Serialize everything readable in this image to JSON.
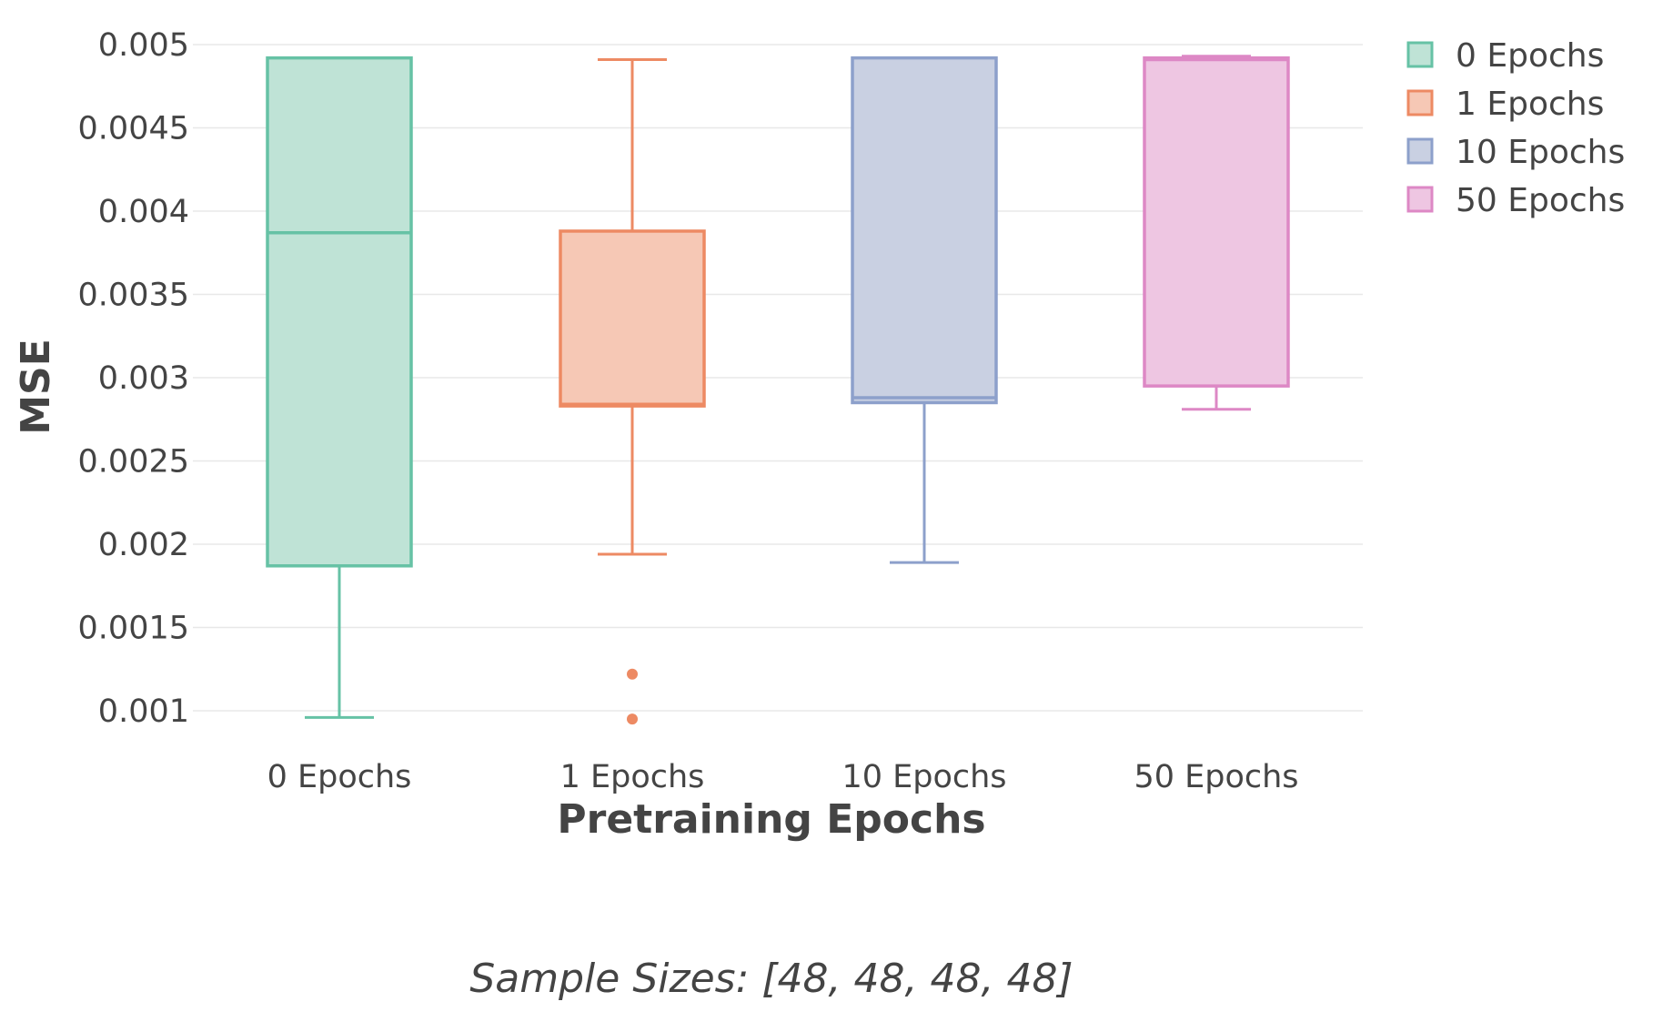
{
  "chart_data": {
    "type": "box",
    "xlabel": "Pretraining Epochs",
    "ylabel": "MSE",
    "ylim": [
      0.00072,
      0.00515
    ],
    "yticks": [
      0.001,
      0.0015,
      0.002,
      0.0025,
      0.003,
      0.0035,
      0.004,
      0.0045,
      0.005
    ],
    "ytick_labels": [
      "0.001",
      "0.0015",
      "0.002",
      "0.0025",
      "0.003",
      "0.0035",
      "0.004",
      "0.0045",
      "0.005"
    ],
    "grid": true,
    "legend_position": "top-right",
    "categories": [
      "0 Epochs",
      "1 Epochs",
      "10 Epochs",
      "50 Epochs"
    ],
    "series": [
      {
        "name": "0 Epochs",
        "color": "#66c2a5",
        "fill": "#bfe3d6",
        "min": 0.00096,
        "q1": 0.00187,
        "median": 0.00387,
        "q3": 0.00492,
        "max": 0.00492,
        "outliers": []
      },
      {
        "name": "1 Epochs",
        "color": "#ed8a63",
        "fill": "#f6c8b5",
        "min": 0.00194,
        "q1": 0.00283,
        "median": 0.00284,
        "q3": 0.00388,
        "max": 0.00491,
        "outliers": [
          0.00122,
          0.00095
        ]
      },
      {
        "name": "10 Epochs",
        "color": "#8da0cb",
        "fill": "#c9d0e2",
        "min": 0.00189,
        "q1": 0.00285,
        "median": 0.00288,
        "q3": 0.00492,
        "max": 0.00492,
        "outliers": []
      },
      {
        "name": "50 Epochs",
        "color": "#dd88c5",
        "fill": "#eec6e2",
        "min": 0.00281,
        "q1": 0.00295,
        "median": 0.00491,
        "q3": 0.00492,
        "max": 0.00493,
        "outliers": []
      }
    ],
    "annotation": "Sample Sizes: [48, 48, 48, 48]"
  }
}
